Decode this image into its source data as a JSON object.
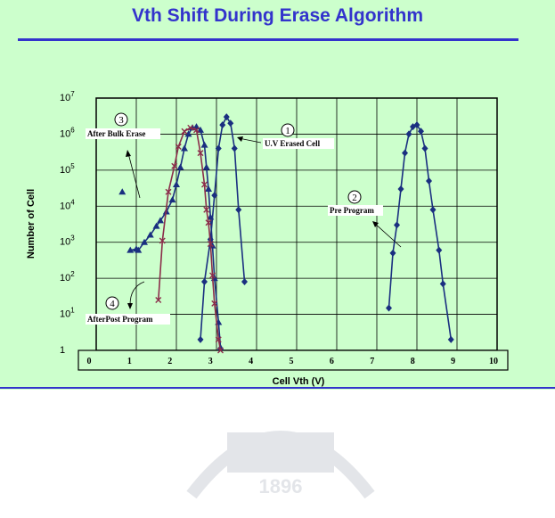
{
  "slide": {
    "title": "Vth Shift During Erase Algorithm",
    "watermark_text": "1896"
  },
  "chart_data": {
    "type": "line",
    "xlabel": "Cell Vth (V)",
    "ylabel": "Number of Cell",
    "xlim": [
      0,
      10
    ],
    "ylim_log10": [
      0,
      7
    ],
    "y_scale": "log",
    "grid": true,
    "x_ticks": [
      "0",
      "1",
      "2",
      "3",
      "4",
      "5",
      "6",
      "7",
      "8",
      "9",
      "10"
    ],
    "y_ticks": [
      {
        "base": "1",
        "exp": ""
      },
      {
        "base": "10",
        "exp": "1"
      },
      {
        "base": "10",
        "exp": "2"
      },
      {
        "base": "10",
        "exp": "3"
      },
      {
        "base": "10",
        "exp": "4"
      },
      {
        "base": "10",
        "exp": "5"
      },
      {
        "base": "10",
        "exp": "6"
      },
      {
        "base": "10",
        "exp": "7"
      }
    ],
    "series": [
      {
        "id": "bulk",
        "marker": "triangle",
        "color": "#1a2f80",
        "points": [
          [
            0.85,
            600
          ],
          [
            1.0,
            650
          ],
          [
            1.05,
            600
          ],
          [
            1.2,
            1000
          ],
          [
            1.35,
            1600
          ],
          [
            1.5,
            2800
          ],
          [
            1.6,
            4000
          ],
          [
            1.75,
            7000
          ],
          [
            1.9,
            15000
          ],
          [
            2.0,
            40000
          ],
          [
            2.1,
            120000
          ],
          [
            2.2,
            400000
          ],
          [
            2.3,
            1000000
          ],
          [
            2.4,
            1500000
          ],
          [
            2.5,
            1600000
          ],
          [
            2.6,
            1300000
          ],
          [
            2.7,
            500000
          ],
          [
            2.75,
            120000
          ],
          [
            2.8,
            30000
          ],
          [
            2.85,
            5000
          ],
          [
            2.9,
            800
          ],
          [
            2.95,
            100
          ],
          [
            3.05,
            6
          ],
          [
            3.1,
            1.2
          ]
        ]
      },
      {
        "id": "uv",
        "marker": "diamond",
        "color": "#1a2f80",
        "points": [
          [
            2.6,
            2
          ],
          [
            2.7,
            80
          ],
          [
            2.85,
            1200
          ],
          [
            2.95,
            20000
          ],
          [
            3.05,
            400000
          ],
          [
            3.15,
            1800000
          ],
          [
            3.25,
            3000000
          ],
          [
            3.35,
            2000000
          ],
          [
            3.45,
            400000
          ],
          [
            3.55,
            8000
          ],
          [
            3.7,
            80
          ]
        ]
      },
      {
        "id": "pre",
        "marker": "diamond",
        "color": "#1a2f80",
        "points": [
          [
            7.3,
            15
          ],
          [
            7.4,
            500
          ],
          [
            7.5,
            3000
          ],
          [
            7.6,
            30000
          ],
          [
            7.7,
            300000
          ],
          [
            7.8,
            1000000
          ],
          [
            7.9,
            1600000
          ],
          [
            8.0,
            1800000
          ],
          [
            8.1,
            1200000
          ],
          [
            8.2,
            400000
          ],
          [
            8.3,
            50000
          ],
          [
            8.4,
            8000
          ],
          [
            8.55,
            600
          ],
          [
            8.65,
            70
          ],
          [
            8.85,
            2
          ]
        ]
      },
      {
        "id": "post",
        "marker": "x",
        "color": "#8b2d4a",
        "points": [
          [
            1.55,
            25
          ],
          [
            1.65,
            1100
          ],
          [
            1.8,
            25000
          ],
          [
            1.95,
            130000
          ],
          [
            2.05,
            450000
          ],
          [
            2.2,
            1200000
          ],
          [
            2.35,
            1500000
          ],
          [
            2.5,
            1300000
          ],
          [
            2.6,
            300000
          ],
          [
            2.7,
            40000
          ],
          [
            2.75,
            8000
          ],
          [
            2.8,
            3500
          ],
          [
            2.85,
            900
          ],
          [
            2.9,
            120
          ],
          [
            2.95,
            20
          ],
          [
            3.05,
            2
          ],
          [
            3.1,
            1
          ]
        ]
      },
      {
        "id": "outlier",
        "marker": "triangle",
        "color": "#1a2f80",
        "line": false,
        "points": [
          [
            0.65,
            25000
          ]
        ]
      }
    ],
    "annotations": [
      {
        "num": "1",
        "text": "U.V Erased Cell"
      },
      {
        "num": "2",
        "text": "Pre Program"
      },
      {
        "num": "3",
        "text": "After Bulk Erase"
      },
      {
        "num": "4",
        "text": "AfterPost Program"
      }
    ]
  }
}
